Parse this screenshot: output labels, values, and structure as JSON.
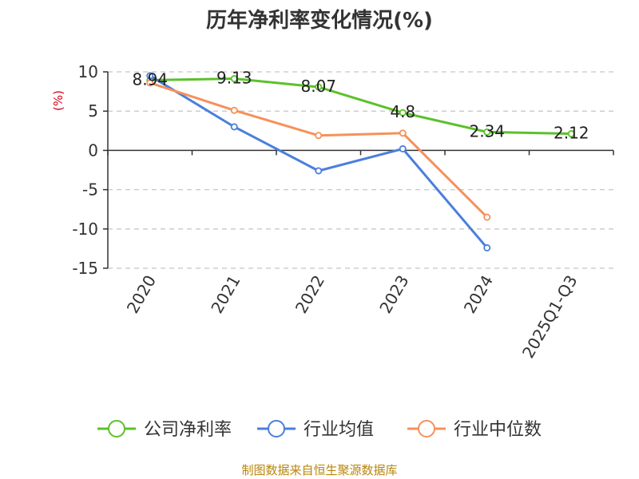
{
  "chart_data": {
    "type": "line",
    "title": "历年净利率变化情况(%)",
    "ylabel": "(%)",
    "categories": [
      "2020",
      "2021",
      "2022",
      "2023",
      "2024",
      "2025Q1-Q3"
    ],
    "ylim": [
      -15,
      10
    ],
    "yticks": [
      10,
      5,
      0,
      -5,
      -10,
      -15
    ],
    "grid": true,
    "legend_position": "bottom",
    "series": [
      {
        "name": "公司净利率",
        "color": "#5cc12b",
        "values": [
          8.94,
          9.13,
          8.07,
          4.8,
          2.34,
          2.12
        ],
        "labels": [
          "8.94",
          "9.13",
          "8.07",
          "4.8",
          "2.34",
          "2.12"
        ]
      },
      {
        "name": "行业均值",
        "color": "#4a7fdc",
        "values": [
          9.5,
          3.0,
          -2.6,
          0.2,
          -12.4,
          null
        ]
      },
      {
        "name": "行业中位数",
        "color": "#f5915a",
        "values": [
          8.6,
          5.1,
          1.9,
          2.2,
          -8.5,
          null
        ]
      }
    ]
  },
  "footer": {
    "source": "制图数据来自恒生聚源数据库"
  }
}
